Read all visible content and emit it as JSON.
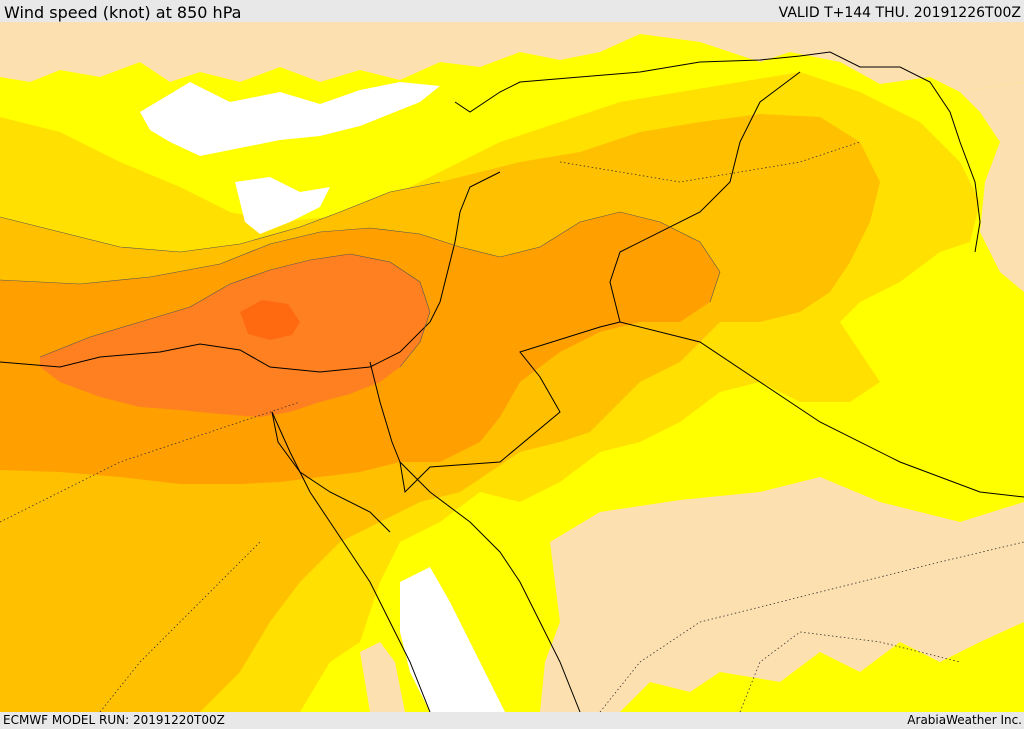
{
  "header": {
    "title": "Wind speed (knot) at 850 hPa",
    "valid": "VALID T+144 THU. 20191226T00Z"
  },
  "footer": {
    "model_run": "ECMWF MODEL RUN: 20191220T00Z",
    "credit": "ArabiaWeather Inc."
  },
  "colors": {
    "calm_beige": "#fde0b0",
    "light_yellow": "#ffff00",
    "yellow_gold": "#ffe000",
    "amber": "#ffc000",
    "orange": "#ffa000",
    "dark_orange": "#ff8020",
    "red_orange": "#ff6a10",
    "sea_no_data": "#ffffff",
    "frame_grey": "#e8e8e8"
  }
}
